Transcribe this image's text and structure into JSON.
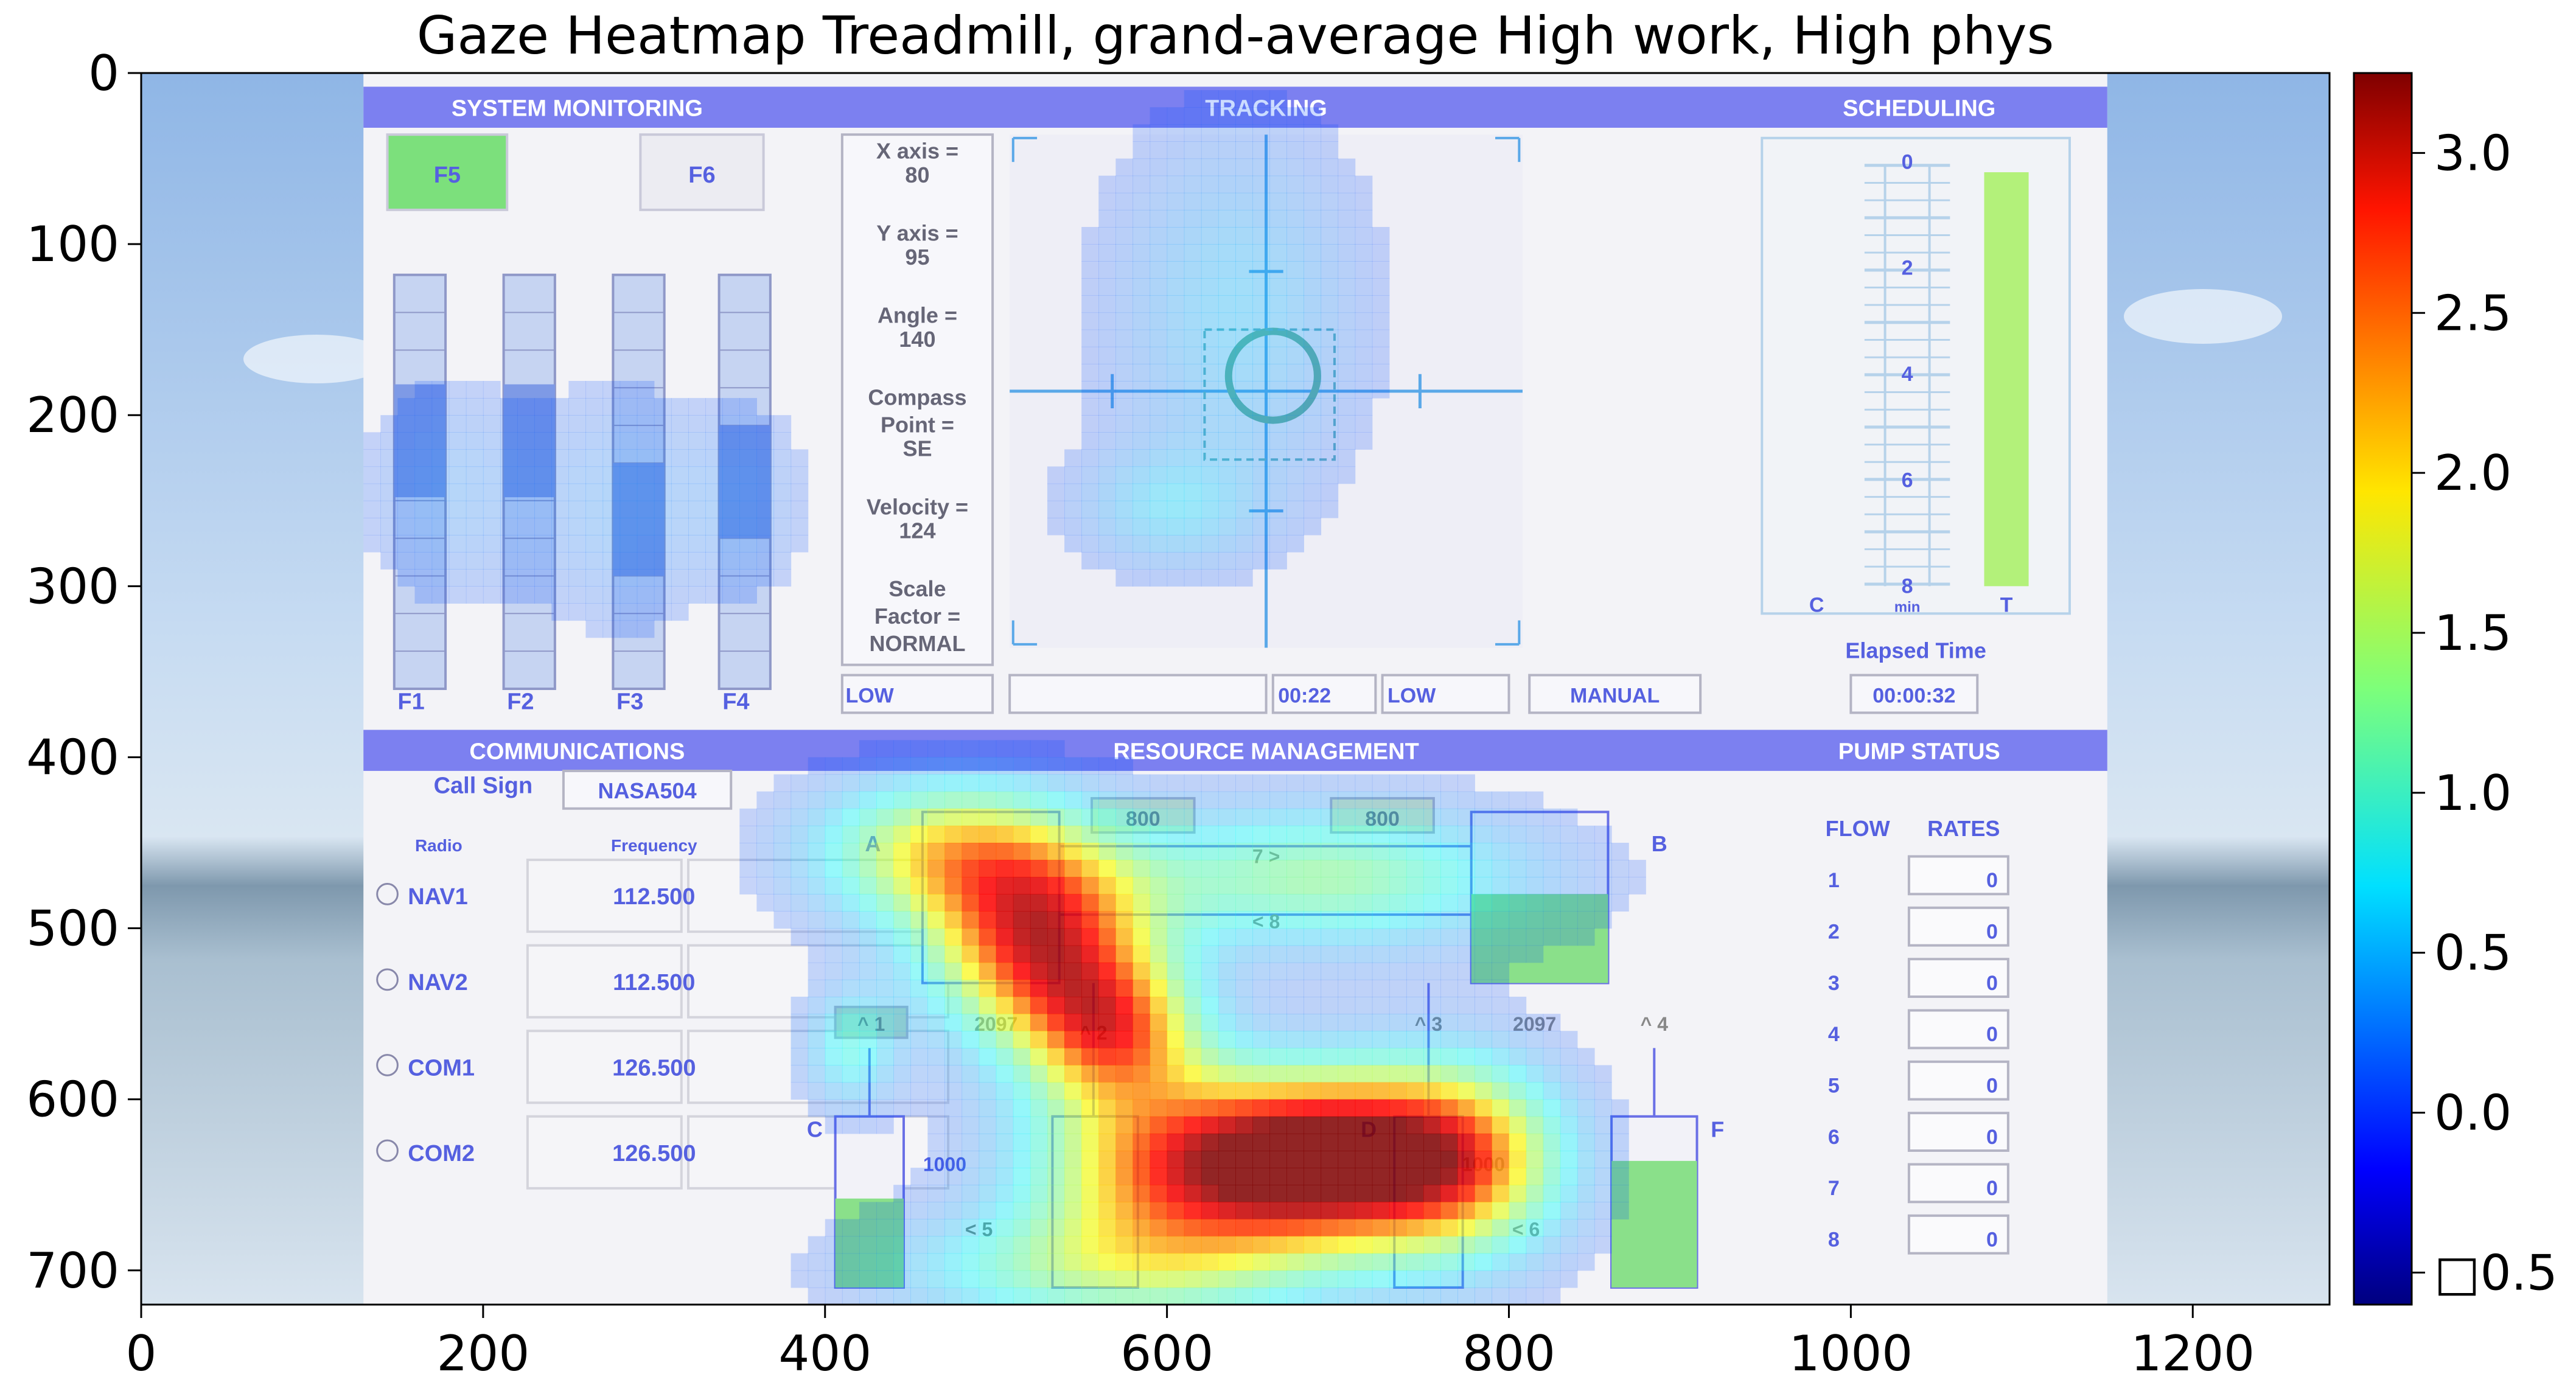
{
  "chart_data": {
    "type": "heatmap",
    "title": "Gaze Heatmap Treadmill, grand-average High work, High phys",
    "xlim": [
      0,
      1280
    ],
    "ylim": [
      720,
      0
    ],
    "x_ticks": [
      0,
      200,
      400,
      600,
      800,
      1000,
      1200
    ],
    "y_ticks": [
      0,
      100,
      200,
      300,
      400,
      500,
      600,
      700
    ],
    "colorbar": {
      "colormap": "jet",
      "range": [
        -0.6,
        3.25
      ],
      "ticks": [
        -0.5,
        0.0,
        0.5,
        1.0,
        1.5,
        2.0,
        2.5,
        3.0
      ],
      "tick_labels": [
        "□0.5",
        "0.0",
        "0.5",
        "1.0",
        "1.5",
        "2.0",
        "2.5",
        "3.0"
      ]
    },
    "hotspots": [
      {
        "x": 525,
        "y": 510,
        "sx": 45,
        "sy": 40,
        "value": 2.6
      },
      {
        "x": 470,
        "y": 455,
        "sx": 55,
        "sy": 30,
        "value": 1.7
      },
      {
        "x": 570,
        "y": 560,
        "sx": 35,
        "sy": 30,
        "value": 1.9
      },
      {
        "x": 600,
        "y": 640,
        "sx": 60,
        "sy": 40,
        "value": 2.0
      },
      {
        "x": 690,
        "y": 635,
        "sx": 55,
        "sy": 35,
        "value": 2.9
      },
      {
        "x": 770,
        "y": 635,
        "sx": 45,
        "sy": 40,
        "value": 2.1
      },
      {
        "x": 690,
        "y": 470,
        "sx": 90,
        "sy": 30,
        "value": 1.3
      },
      {
        "x": 560,
        "y": 700,
        "sx": 90,
        "sy": 25,
        "value": 1.1
      },
      {
        "x": 415,
        "y": 570,
        "sx": 20,
        "sy": 25,
        "value": 0.9
      },
      {
        "x": 640,
        "y": 140,
        "sx": 55,
        "sy": 80,
        "value": 0.6
      },
      {
        "x": 600,
        "y": 255,
        "sx": 40,
        "sy": 25,
        "value": 0.55
      },
      {
        "x": 180,
        "y": 245,
        "sx": 40,
        "sy": 50,
        "value": 0.35
      },
      {
        "x": 280,
        "y": 255,
        "sx": 35,
        "sy": 55,
        "value": 0.35
      },
      {
        "x": 355,
        "y": 250,
        "sx": 30,
        "sy": 45,
        "value": 0.3
      }
    ]
  },
  "screen": {
    "headers": {
      "system": "SYSTEM MONITORING",
      "tracking": "TRACKING",
      "scheduling": "SCHEDULING",
      "communications": "COMMUNICATIONS",
      "resource": "RESOURCE MANAGEMENT",
      "pump": "PUMP STATUS"
    },
    "sysmon": {
      "f5": "F5",
      "f6": "F6",
      "scales": [
        "F1",
        "F2",
        "F3",
        "F4"
      ]
    },
    "tracking_info": [
      "X axis =",
      "80",
      "Y axis =",
      "95",
      "Angle =",
      "140",
      "Compass",
      "Point =",
      "SE",
      "Velocity =",
      "124",
      "Scale",
      "Factor =",
      "NORMAL"
    ],
    "status": {
      "low_left": "LOW",
      "time": "00:22",
      "low_right": "LOW",
      "manual": "MANUAL"
    },
    "scheduling": {
      "ticks": [
        "0",
        "2",
        "4",
        "6",
        "8"
      ],
      "c": "C",
      "min": "min",
      "t": "T",
      "elapsed_label": "Elapsed Time",
      "elapsed_value": "00:00:32"
    },
    "comm": {
      "callsign_label": "Call Sign",
      "callsign_value": "NASA504",
      "radio_header": "Radio",
      "freq_header": "Frequency",
      "rows": [
        {
          "radio": "NAV1",
          "freq": "112.500"
        },
        {
          "radio": "NAV2",
          "freq": "112.500"
        },
        {
          "radio": "COM1",
          "freq": "126.500"
        },
        {
          "radio": "COM2",
          "freq": "126.500"
        }
      ]
    },
    "resman": {
      "top_left_value": "800",
      "top_right_value": "800",
      "tank_a": "A",
      "tank_b": "B",
      "tank_c": "C",
      "tank_f": "F",
      "tank_d": "D",
      "pump7": "7 >",
      "pump8": "< 8",
      "pump1": "^ 1",
      "pump2": "^ 2",
      "pump3": "^ 3",
      "pump4": "^ 4",
      "pump5": "< 5",
      "pump6": "< 6",
      "level_a": "2097",
      "level_b": "2097",
      "level_c": "1000",
      "level_d": "1000"
    },
    "pump_status": {
      "flow": "FLOW",
      "rates": "RATES",
      "rows": [
        {
          "n": "1",
          "v": "0"
        },
        {
          "n": "2",
          "v": "0"
        },
        {
          "n": "3",
          "v": "0"
        },
        {
          "n": "4",
          "v": "0"
        },
        {
          "n": "5",
          "v": "0"
        },
        {
          "n": "6",
          "v": "0"
        },
        {
          "n": "7",
          "v": "0"
        },
        {
          "n": "8",
          "v": "0"
        }
      ]
    }
  }
}
